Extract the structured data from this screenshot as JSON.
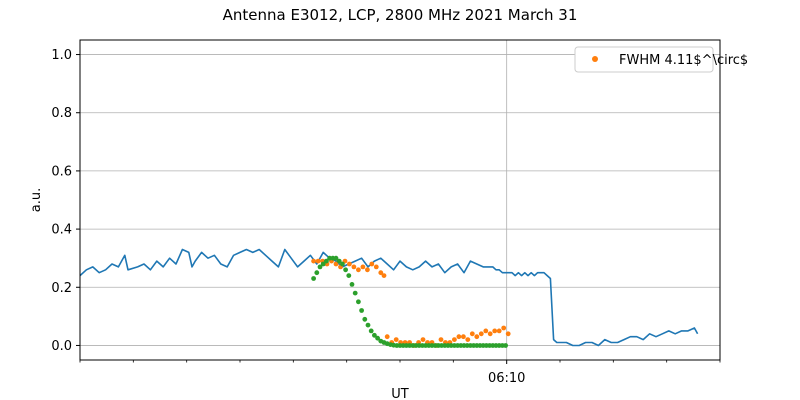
{
  "chart_data": {
    "type": "line",
    "title": "Antenna E3012, LCP, 2800 MHz 2021 March 31",
    "xlabel": "UT",
    "ylabel": "a.u.",
    "xlim": [
      0,
      1
    ],
    "ylim": [
      -0.05,
      1.05
    ],
    "grid": true,
    "legend": {
      "placement": "top-right",
      "entries": [
        "FWHM 4.11$^\\circ$"
      ]
    },
    "x_ticks": [
      {
        "x": 0.6667,
        "label": "06:10"
      }
    ],
    "x_minor_ticks": [
      0.0,
      0.0833,
      0.1667,
      0.25,
      0.3333,
      0.4167,
      0.5,
      0.5833,
      0.75,
      0.8333,
      0.9167,
      1.0
    ],
    "y_ticks": [
      {
        "y": 0.0,
        "label": "0.0"
      },
      {
        "y": 0.2,
        "label": "0.2"
      },
      {
        "y": 0.4,
        "label": "0.4"
      },
      {
        "y": 0.6,
        "label": "0.6"
      },
      {
        "y": 0.8,
        "label": "0.8"
      },
      {
        "y": 1.0,
        "label": "1.0"
      }
    ],
    "series": [
      {
        "kind": "line",
        "color": "#1f77b4",
        "points": [
          [
            0.0,
            0.24
          ],
          [
            0.01,
            0.26
          ],
          [
            0.02,
            0.27
          ],
          [
            0.03,
            0.25
          ],
          [
            0.04,
            0.26
          ],
          [
            0.05,
            0.28
          ],
          [
            0.06,
            0.27
          ],
          [
            0.07,
            0.31
          ],
          [
            0.075,
            0.26
          ],
          [
            0.09,
            0.27
          ],
          [
            0.1,
            0.28
          ],
          [
            0.11,
            0.26
          ],
          [
            0.12,
            0.29
          ],
          [
            0.13,
            0.27
          ],
          [
            0.14,
            0.3
          ],
          [
            0.15,
            0.28
          ],
          [
            0.16,
            0.33
          ],
          [
            0.17,
            0.32
          ],
          [
            0.175,
            0.27
          ],
          [
            0.18,
            0.29
          ],
          [
            0.19,
            0.32
          ],
          [
            0.2,
            0.3
          ],
          [
            0.21,
            0.31
          ],
          [
            0.22,
            0.28
          ],
          [
            0.23,
            0.27
          ],
          [
            0.24,
            0.31
          ],
          [
            0.25,
            0.32
          ],
          [
            0.26,
            0.33
          ],
          [
            0.27,
            0.32
          ],
          [
            0.28,
            0.33
          ],
          [
            0.29,
            0.31
          ],
          [
            0.3,
            0.29
          ],
          [
            0.31,
            0.27
          ],
          [
            0.32,
            0.33
          ],
          [
            0.33,
            0.3
          ],
          [
            0.34,
            0.27
          ],
          [
            0.35,
            0.29
          ],
          [
            0.36,
            0.31
          ],
          [
            0.37,
            0.28
          ],
          [
            0.38,
            0.32
          ],
          [
            0.39,
            0.3
          ],
          [
            0.4,
            0.29
          ],
          [
            0.41,
            0.27
          ],
          [
            0.42,
            0.28
          ],
          [
            0.43,
            0.29
          ],
          [
            0.44,
            0.3
          ],
          [
            0.45,
            0.27
          ],
          [
            0.46,
            0.29
          ],
          [
            0.47,
            0.3
          ],
          [
            0.48,
            0.28
          ],
          [
            0.49,
            0.26
          ],
          [
            0.5,
            0.29
          ],
          [
            0.51,
            0.27
          ],
          [
            0.52,
            0.26
          ],
          [
            0.53,
            0.27
          ],
          [
            0.54,
            0.29
          ],
          [
            0.545,
            0.28
          ],
          [
            0.55,
            0.27
          ],
          [
            0.56,
            0.28
          ],
          [
            0.57,
            0.25
          ],
          [
            0.58,
            0.27
          ],
          [
            0.59,
            0.28
          ],
          [
            0.6,
            0.25
          ],
          [
            0.61,
            0.29
          ],
          [
            0.62,
            0.28
          ],
          [
            0.63,
            0.27
          ],
          [
            0.64,
            0.27
          ],
          [
            0.645,
            0.27
          ],
          [
            0.65,
            0.26
          ],
          [
            0.655,
            0.26
          ],
          [
            0.66,
            0.25
          ],
          [
            0.665,
            0.25
          ],
          [
            0.67,
            0.25
          ],
          [
            0.675,
            0.25
          ],
          [
            0.68,
            0.24
          ],
          [
            0.685,
            0.25
          ],
          [
            0.69,
            0.24
          ],
          [
            0.695,
            0.25
          ],
          [
            0.7,
            0.24
          ],
          [
            0.705,
            0.25
          ],
          [
            0.71,
            0.24
          ],
          [
            0.715,
            0.25
          ],
          [
            0.72,
            0.25
          ],
          [
            0.725,
            0.25
          ],
          [
            0.73,
            0.24
          ],
          [
            0.735,
            0.23
          ],
          [
            0.74,
            0.02
          ],
          [
            0.745,
            0.01
          ],
          [
            0.75,
            0.01
          ],
          [
            0.76,
            0.01
          ],
          [
            0.77,
            0.0
          ],
          [
            0.78,
            0.0
          ],
          [
            0.79,
            0.01
          ],
          [
            0.8,
            0.01
          ],
          [
            0.81,
            0.0
          ],
          [
            0.82,
            0.02
          ],
          [
            0.83,
            0.01
          ],
          [
            0.84,
            0.01
          ],
          [
            0.85,
            0.02
          ],
          [
            0.86,
            0.03
          ],
          [
            0.87,
            0.03
          ],
          [
            0.88,
            0.02
          ],
          [
            0.89,
            0.04
          ],
          [
            0.9,
            0.03
          ],
          [
            0.91,
            0.04
          ],
          [
            0.92,
            0.05
          ],
          [
            0.93,
            0.04
          ],
          [
            0.94,
            0.05
          ],
          [
            0.95,
            0.05
          ],
          [
            0.96,
            0.06
          ],
          [
            0.965,
            0.04
          ]
        ]
      },
      {
        "kind": "scatter",
        "color": "#ff7f0e",
        "points": [
          [
            0.365,
            0.29
          ],
          [
            0.372,
            0.29
          ],
          [
            0.379,
            0.29
          ],
          [
            0.386,
            0.28
          ],
          [
            0.393,
            0.29
          ],
          [
            0.4,
            0.28
          ],
          [
            0.407,
            0.27
          ],
          [
            0.414,
            0.29
          ],
          [
            0.421,
            0.28
          ],
          [
            0.428,
            0.27
          ],
          [
            0.435,
            0.26
          ],
          [
            0.442,
            0.27
          ],
          [
            0.449,
            0.26
          ],
          [
            0.456,
            0.28
          ],
          [
            0.463,
            0.27
          ],
          [
            0.47,
            0.25
          ],
          [
            0.475,
            0.24
          ],
          [
            0.48,
            0.03
          ],
          [
            0.487,
            0.01
          ],
          [
            0.494,
            0.02
          ],
          [
            0.501,
            0.01
          ],
          [
            0.508,
            0.01
          ],
          [
            0.515,
            0.01
          ],
          [
            0.522,
            0.0
          ],
          [
            0.529,
            0.01
          ],
          [
            0.536,
            0.02
          ],
          [
            0.543,
            0.01
          ],
          [
            0.55,
            0.01
          ],
          [
            0.557,
            0.0
          ],
          [
            0.564,
            0.02
          ],
          [
            0.571,
            0.01
          ],
          [
            0.578,
            0.01
          ],
          [
            0.585,
            0.02
          ],
          [
            0.592,
            0.03
          ],
          [
            0.599,
            0.03
          ],
          [
            0.606,
            0.02
          ],
          [
            0.613,
            0.04
          ],
          [
            0.62,
            0.03
          ],
          [
            0.627,
            0.04
          ],
          [
            0.634,
            0.05
          ],
          [
            0.641,
            0.04
          ],
          [
            0.648,
            0.05
          ],
          [
            0.655,
            0.05
          ],
          [
            0.662,
            0.06
          ],
          [
            0.669,
            0.04
          ]
        ]
      },
      {
        "kind": "scatter",
        "color": "#2ca02c",
        "points": [
          [
            0.365,
            0.23
          ],
          [
            0.37,
            0.25
          ],
          [
            0.375,
            0.27
          ],
          [
            0.38,
            0.28
          ],
          [
            0.385,
            0.29
          ],
          [
            0.39,
            0.3
          ],
          [
            0.395,
            0.3
          ],
          [
            0.4,
            0.3
          ],
          [
            0.405,
            0.29
          ],
          [
            0.41,
            0.28
          ],
          [
            0.415,
            0.26
          ],
          [
            0.42,
            0.24
          ],
          [
            0.425,
            0.21
          ],
          [
            0.43,
            0.18
          ],
          [
            0.435,
            0.15
          ],
          [
            0.44,
            0.12
          ],
          [
            0.445,
            0.09
          ],
          [
            0.45,
            0.07
          ],
          [
            0.455,
            0.05
          ],
          [
            0.46,
            0.035
          ],
          [
            0.465,
            0.025
          ],
          [
            0.47,
            0.015
          ],
          [
            0.475,
            0.01
          ],
          [
            0.48,
            0.006
          ],
          [
            0.485,
            0.003
          ],
          [
            0.49,
            0.001
          ],
          [
            0.495,
            0.0
          ],
          [
            0.5,
            0.0
          ],
          [
            0.505,
            0.0
          ],
          [
            0.51,
            0.0
          ],
          [
            0.515,
            0.0
          ],
          [
            0.52,
            0.0
          ],
          [
            0.525,
            0.0
          ],
          [
            0.53,
            0.0
          ],
          [
            0.535,
            0.0
          ],
          [
            0.54,
            0.0
          ],
          [
            0.545,
            0.0
          ],
          [
            0.55,
            0.0
          ],
          [
            0.555,
            0.0
          ],
          [
            0.56,
            0.0
          ],
          [
            0.565,
            0.0
          ],
          [
            0.57,
            0.0
          ],
          [
            0.575,
            0.0
          ],
          [
            0.58,
            0.0
          ],
          [
            0.585,
            0.0
          ],
          [
            0.59,
            0.0
          ],
          [
            0.595,
            0.0
          ],
          [
            0.6,
            0.0
          ],
          [
            0.605,
            0.0
          ],
          [
            0.61,
            0.0
          ],
          [
            0.615,
            0.0
          ],
          [
            0.62,
            0.0
          ],
          [
            0.625,
            0.0
          ],
          [
            0.63,
            0.0
          ],
          [
            0.635,
            0.0
          ],
          [
            0.64,
            0.0
          ],
          [
            0.645,
            0.0
          ],
          [
            0.65,
            0.0
          ],
          [
            0.655,
            0.0
          ],
          [
            0.66,
            0.0
          ],
          [
            0.665,
            0.0
          ]
        ]
      }
    ]
  }
}
